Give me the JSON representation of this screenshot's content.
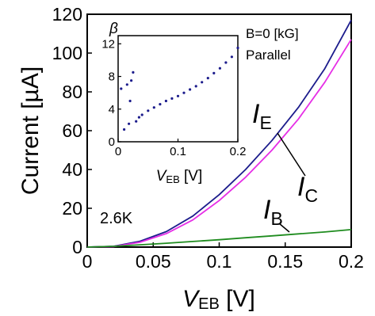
{
  "chart_data": [
    {
      "type": "line",
      "xlabel": {
        "main": "V",
        "sub": "EB",
        "unit": " [V]"
      },
      "ylabel": "Current [µA]",
      "xlim": [
        0,
        0.2
      ],
      "ylim": [
        0,
        120
      ],
      "xticks": [
        "0",
        "0.05",
        "0.1",
        "0.15",
        "0.2"
      ],
      "yticks": [
        "0",
        "20",
        "40",
        "60",
        "80",
        "100",
        "120"
      ],
      "annotations": [
        "B=0 [kG]",
        "Parallel",
        "2.6K"
      ],
      "series": [
        {
          "name": "I_E",
          "label_main": "I",
          "label_sub": "E",
          "color": "#1c1c8c",
          "x": [
            0,
            0.02,
            0.04,
            0.06,
            0.08,
            0.1,
            0.12,
            0.14,
            0.16,
            0.18,
            0.2
          ],
          "y": [
            0,
            0.4,
            3,
            8,
            16,
            27,
            40,
            55,
            72,
            92,
            117
          ]
        },
        {
          "name": "I_C",
          "label_main": "I",
          "label_sub": "C",
          "color": "#e62ee6",
          "x": [
            0,
            0.02,
            0.04,
            0.06,
            0.08,
            0.1,
            0.12,
            0.14,
            0.16,
            0.18,
            0.2
          ],
          "y": [
            0,
            0.3,
            2.5,
            7,
            14,
            24,
            36,
            50,
            66,
            85,
            107
          ]
        },
        {
          "name": "I_B",
          "label_main": "I",
          "label_sub": "B",
          "color": "#1f8c1f",
          "x": [
            0,
            0.02,
            0.04,
            0.06,
            0.08,
            0.1,
            0.12,
            0.14,
            0.16,
            0.18,
            0.2
          ],
          "y": [
            0,
            0.4,
            1.2,
            2.0,
            2.9,
            3.8,
            4.8,
            5.8,
            6.8,
            7.8,
            9.0
          ]
        }
      ]
    },
    {
      "type": "scatter",
      "title": "β",
      "xlabel": {
        "main": "V",
        "sub": "EB",
        "unit": " [V]"
      },
      "xlim": [
        0,
        0.2
      ],
      "ylim": [
        0,
        13
      ],
      "xticks": [
        "0",
        "0.1",
        "0.2"
      ],
      "yticks": [
        "0",
        "4",
        "8",
        "12"
      ],
      "color": "#1c1c8c",
      "x": [
        0.005,
        0.01,
        0.015,
        0.018,
        0.02,
        0.022,
        0.025,
        0.03,
        0.035,
        0.04,
        0.05,
        0.06,
        0.07,
        0.08,
        0.09,
        0.1,
        0.11,
        0.12,
        0.13,
        0.14,
        0.15,
        0.16,
        0.17,
        0.18,
        0.19,
        0.2
      ],
      "y": [
        6.5,
        1.5,
        7.0,
        2.2,
        5.0,
        7.5,
        8.5,
        2.5,
        3.0,
        3.3,
        3.8,
        4.2,
        4.6,
        5.0,
        5.3,
        5.6,
        6.0,
        6.4,
        6.8,
        7.3,
        7.8,
        8.4,
        9.0,
        9.7,
        10.4,
        11.5
      ]
    }
  ]
}
